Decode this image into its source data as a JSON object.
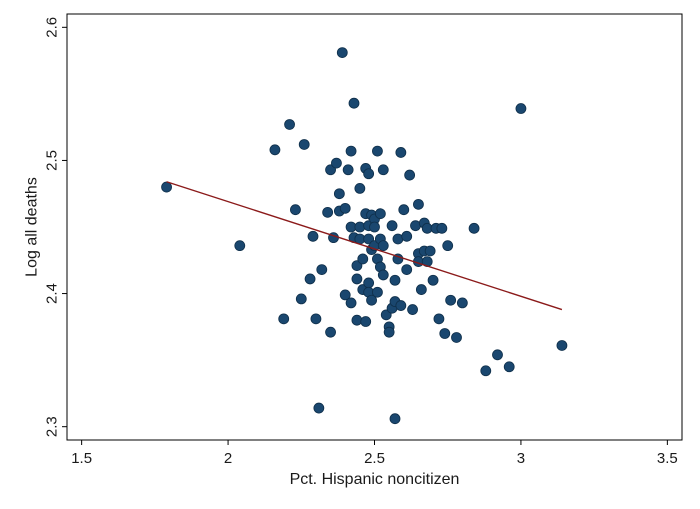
{
  "colors": {
    "background": "#ffffff",
    "axis": "#000000",
    "marker_fill": "#1a476f",
    "marker_stroke": "#0f2f4a",
    "fit_line": "#8b1a1a"
  },
  "chart_data": {
    "type": "scatter",
    "title": "",
    "xlabel": "Pct. Hispanic noncitizen",
    "ylabel": "Log all deaths",
    "xlim": [
      1.45,
      3.55
    ],
    "ylim": [
      2.29,
      2.61
    ],
    "xticks": [
      1.5,
      2,
      2.5,
      3,
      3.5
    ],
    "xtick_labels": [
      "1.5",
      "2",
      "2.5",
      "3",
      "3.5"
    ],
    "yticks": [
      2.3,
      2.4,
      2.5,
      2.6
    ],
    "ytick_labels": [
      "2.3",
      "2.4",
      "2.5",
      "2.6"
    ],
    "grid": false,
    "legend": "none",
    "fit_line": {
      "x": [
        1.79,
        3.14
      ],
      "y": [
        2.484,
        2.388
      ]
    },
    "points": [
      [
        1.79,
        2.48
      ],
      [
        2.04,
        2.436
      ],
      [
        2.16,
        2.508
      ],
      [
        2.19,
        2.381
      ],
      [
        2.21,
        2.527
      ],
      [
        2.23,
        2.463
      ],
      [
        2.25,
        2.396
      ],
      [
        2.26,
        2.512
      ],
      [
        2.28,
        2.411
      ],
      [
        2.29,
        2.443
      ],
      [
        2.3,
        2.381
      ],
      [
        2.31,
        2.314
      ],
      [
        2.32,
        2.418
      ],
      [
        2.34,
        2.461
      ],
      [
        2.35,
        2.493
      ],
      [
        2.35,
        2.371
      ],
      [
        2.36,
        2.442
      ],
      [
        2.37,
        2.498
      ],
      [
        2.38,
        2.462
      ],
      [
        2.38,
        2.475
      ],
      [
        2.39,
        2.581
      ],
      [
        2.4,
        2.464
      ],
      [
        2.4,
        2.399
      ],
      [
        2.41,
        2.493
      ],
      [
        2.42,
        2.507
      ],
      [
        2.42,
        2.45
      ],
      [
        2.42,
        2.393
      ],
      [
        2.43,
        2.442
      ],
      [
        2.43,
        2.543
      ],
      [
        2.44,
        2.421
      ],
      [
        2.44,
        2.411
      ],
      [
        2.44,
        2.38
      ],
      [
        2.45,
        2.479
      ],
      [
        2.45,
        2.45
      ],
      [
        2.45,
        2.441
      ],
      [
        2.46,
        2.426
      ],
      [
        2.46,
        2.403
      ],
      [
        2.47,
        2.494
      ],
      [
        2.47,
        2.46
      ],
      [
        2.47,
        2.379
      ],
      [
        2.48,
        2.49
      ],
      [
        2.48,
        2.451
      ],
      [
        2.48,
        2.441
      ],
      [
        2.48,
        2.408
      ],
      [
        2.48,
        2.401
      ],
      [
        2.49,
        2.459
      ],
      [
        2.49,
        2.433
      ],
      [
        2.49,
        2.395
      ],
      [
        2.5,
        2.456
      ],
      [
        2.5,
        2.45
      ],
      [
        2.5,
        2.436
      ],
      [
        2.51,
        2.507
      ],
      [
        2.51,
        2.426
      ],
      [
        2.51,
        2.401
      ],
      [
        2.52,
        2.46
      ],
      [
        2.52,
        2.441
      ],
      [
        2.52,
        2.42
      ],
      [
        2.53,
        2.493
      ],
      [
        2.53,
        2.436
      ],
      [
        2.53,
        2.414
      ],
      [
        2.54,
        2.384
      ],
      [
        2.55,
        2.375
      ],
      [
        2.55,
        2.371
      ],
      [
        2.56,
        2.451
      ],
      [
        2.56,
        2.389
      ],
      [
        2.57,
        2.41
      ],
      [
        2.57,
        2.394
      ],
      [
        2.57,
        2.306
      ],
      [
        2.58,
        2.441
      ],
      [
        2.58,
        2.426
      ],
      [
        2.59,
        2.506
      ],
      [
        2.59,
        2.391
      ],
      [
        2.6,
        2.463
      ],
      [
        2.61,
        2.443
      ],
      [
        2.61,
        2.418
      ],
      [
        2.62,
        2.489
      ],
      [
        2.63,
        2.388
      ],
      [
        2.64,
        2.451
      ],
      [
        2.65,
        2.467
      ],
      [
        2.65,
        2.43
      ],
      [
        2.65,
        2.424
      ],
      [
        2.66,
        2.403
      ],
      [
        2.67,
        2.453
      ],
      [
        2.67,
        2.432
      ],
      [
        2.68,
        2.449
      ],
      [
        2.68,
        2.424
      ],
      [
        2.69,
        2.432
      ],
      [
        2.7,
        2.41
      ],
      [
        2.71,
        2.449
      ],
      [
        2.72,
        2.381
      ],
      [
        2.73,
        2.449
      ],
      [
        2.74,
        2.37
      ],
      [
        2.75,
        2.436
      ],
      [
        2.76,
        2.395
      ],
      [
        2.78,
        2.367
      ],
      [
        2.8,
        2.393
      ],
      [
        2.84,
        2.449
      ],
      [
        2.88,
        2.342
      ],
      [
        2.92,
        2.354
      ],
      [
        2.96,
        2.345
      ],
      [
        3.0,
        2.539
      ],
      [
        3.14,
        2.361
      ]
    ]
  }
}
